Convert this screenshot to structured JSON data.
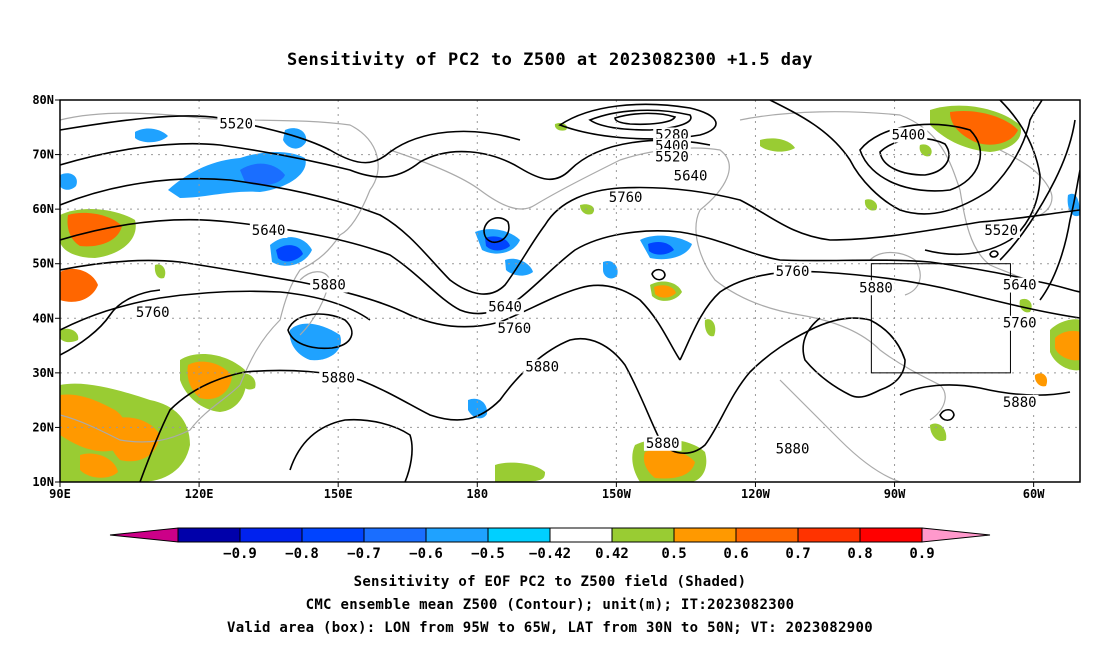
{
  "title": "Sensitivity of PC2 to Z500 at 2023082300 +1.5 day",
  "map": {
    "lat_labels": [
      "80N",
      "70N",
      "60N",
      "50N",
      "40N",
      "30N",
      "20N",
      "10N"
    ],
    "lon_labels": [
      "90E",
      "120E",
      "150E",
      "180",
      "150W",
      "120W",
      "90W",
      "60W"
    ],
    "contour_labels": [
      {
        "text": "5520",
        "lon": 128,
        "lat": 75.5
      },
      {
        "text": "5280",
        "lon": -138,
        "lat": 73.5
      },
      {
        "text": "5400",
        "lon": -138,
        "lat": 71.5
      },
      {
        "text": "5520",
        "lon": -138,
        "lat": 69.5
      },
      {
        "text": "5640",
        "lon": -134,
        "lat": 66.0
      },
      {
        "text": "5400",
        "lon": -87,
        "lat": 73.5
      },
      {
        "text": "5760",
        "lon": -148,
        "lat": 62.0
      },
      {
        "text": "5640",
        "lon": 135,
        "lat": 56.0
      },
      {
        "text": "5520",
        "lon": -67,
        "lat": 56.0
      },
      {
        "text": "5880",
        "lon": 148,
        "lat": 46.0
      },
      {
        "text": "5760",
        "lon": -112,
        "lat": 48.5
      },
      {
        "text": "5640",
        "lon": -63,
        "lat": 46.0
      },
      {
        "text": "5880",
        "lon": -94,
        "lat": 45.5
      },
      {
        "text": "5760",
        "lon": 110,
        "lat": 41.0
      },
      {
        "text": "5640",
        "lon": -174,
        "lat": 42.0
      },
      {
        "text": "5760",
        "lon": -172,
        "lat": 38.0
      },
      {
        "text": "5760",
        "lon": -63,
        "lat": 39.0
      },
      {
        "text": "5880",
        "lon": -166,
        "lat": 31.0
      },
      {
        "text": "5880",
        "lon": 150,
        "lat": 29.0
      },
      {
        "text": "5880",
        "lon": -63,
        "lat": 24.5
      },
      {
        "text": "5880",
        "lon": -140,
        "lat": 17.0
      },
      {
        "text": "5880",
        "lon": -112,
        "lat": 16.0
      }
    ],
    "valid_box": {
      "lon_w": -95,
      "lon_e": -65,
      "lat_s": 30,
      "lat_n": 50
    }
  },
  "colorbar": {
    "labels": [
      "-0.9",
      "-0.8",
      "-0.7",
      "-0.6",
      "-0.5",
      "-0.42",
      "0.42",
      "0.5",
      "0.6",
      "0.7",
      "0.8",
      "0.9"
    ],
    "colors": [
      "#0000aa",
      "#0022ee",
      "#0044ff",
      "#1a6eff",
      "#1fa2ff",
      "#00d0ff",
      "#ffffff",
      "#99cc33",
      "#ff9900",
      "#ff6600",
      "#ff3300",
      "#ff0000"
    ],
    "low_arrow_color": "#cc0088",
    "high_arrow_color": "#ff99cc"
  },
  "captions": [
    "Sensitivity of EOF PC2 to Z500 field (Shaded)",
    "CMC ensemble mean Z500 (Contour); unit(m); IT:2023082300",
    "Valid area (box): LON from 95W to 65W, LAT from 30N to 50N; VT: 2023082900"
  ]
}
